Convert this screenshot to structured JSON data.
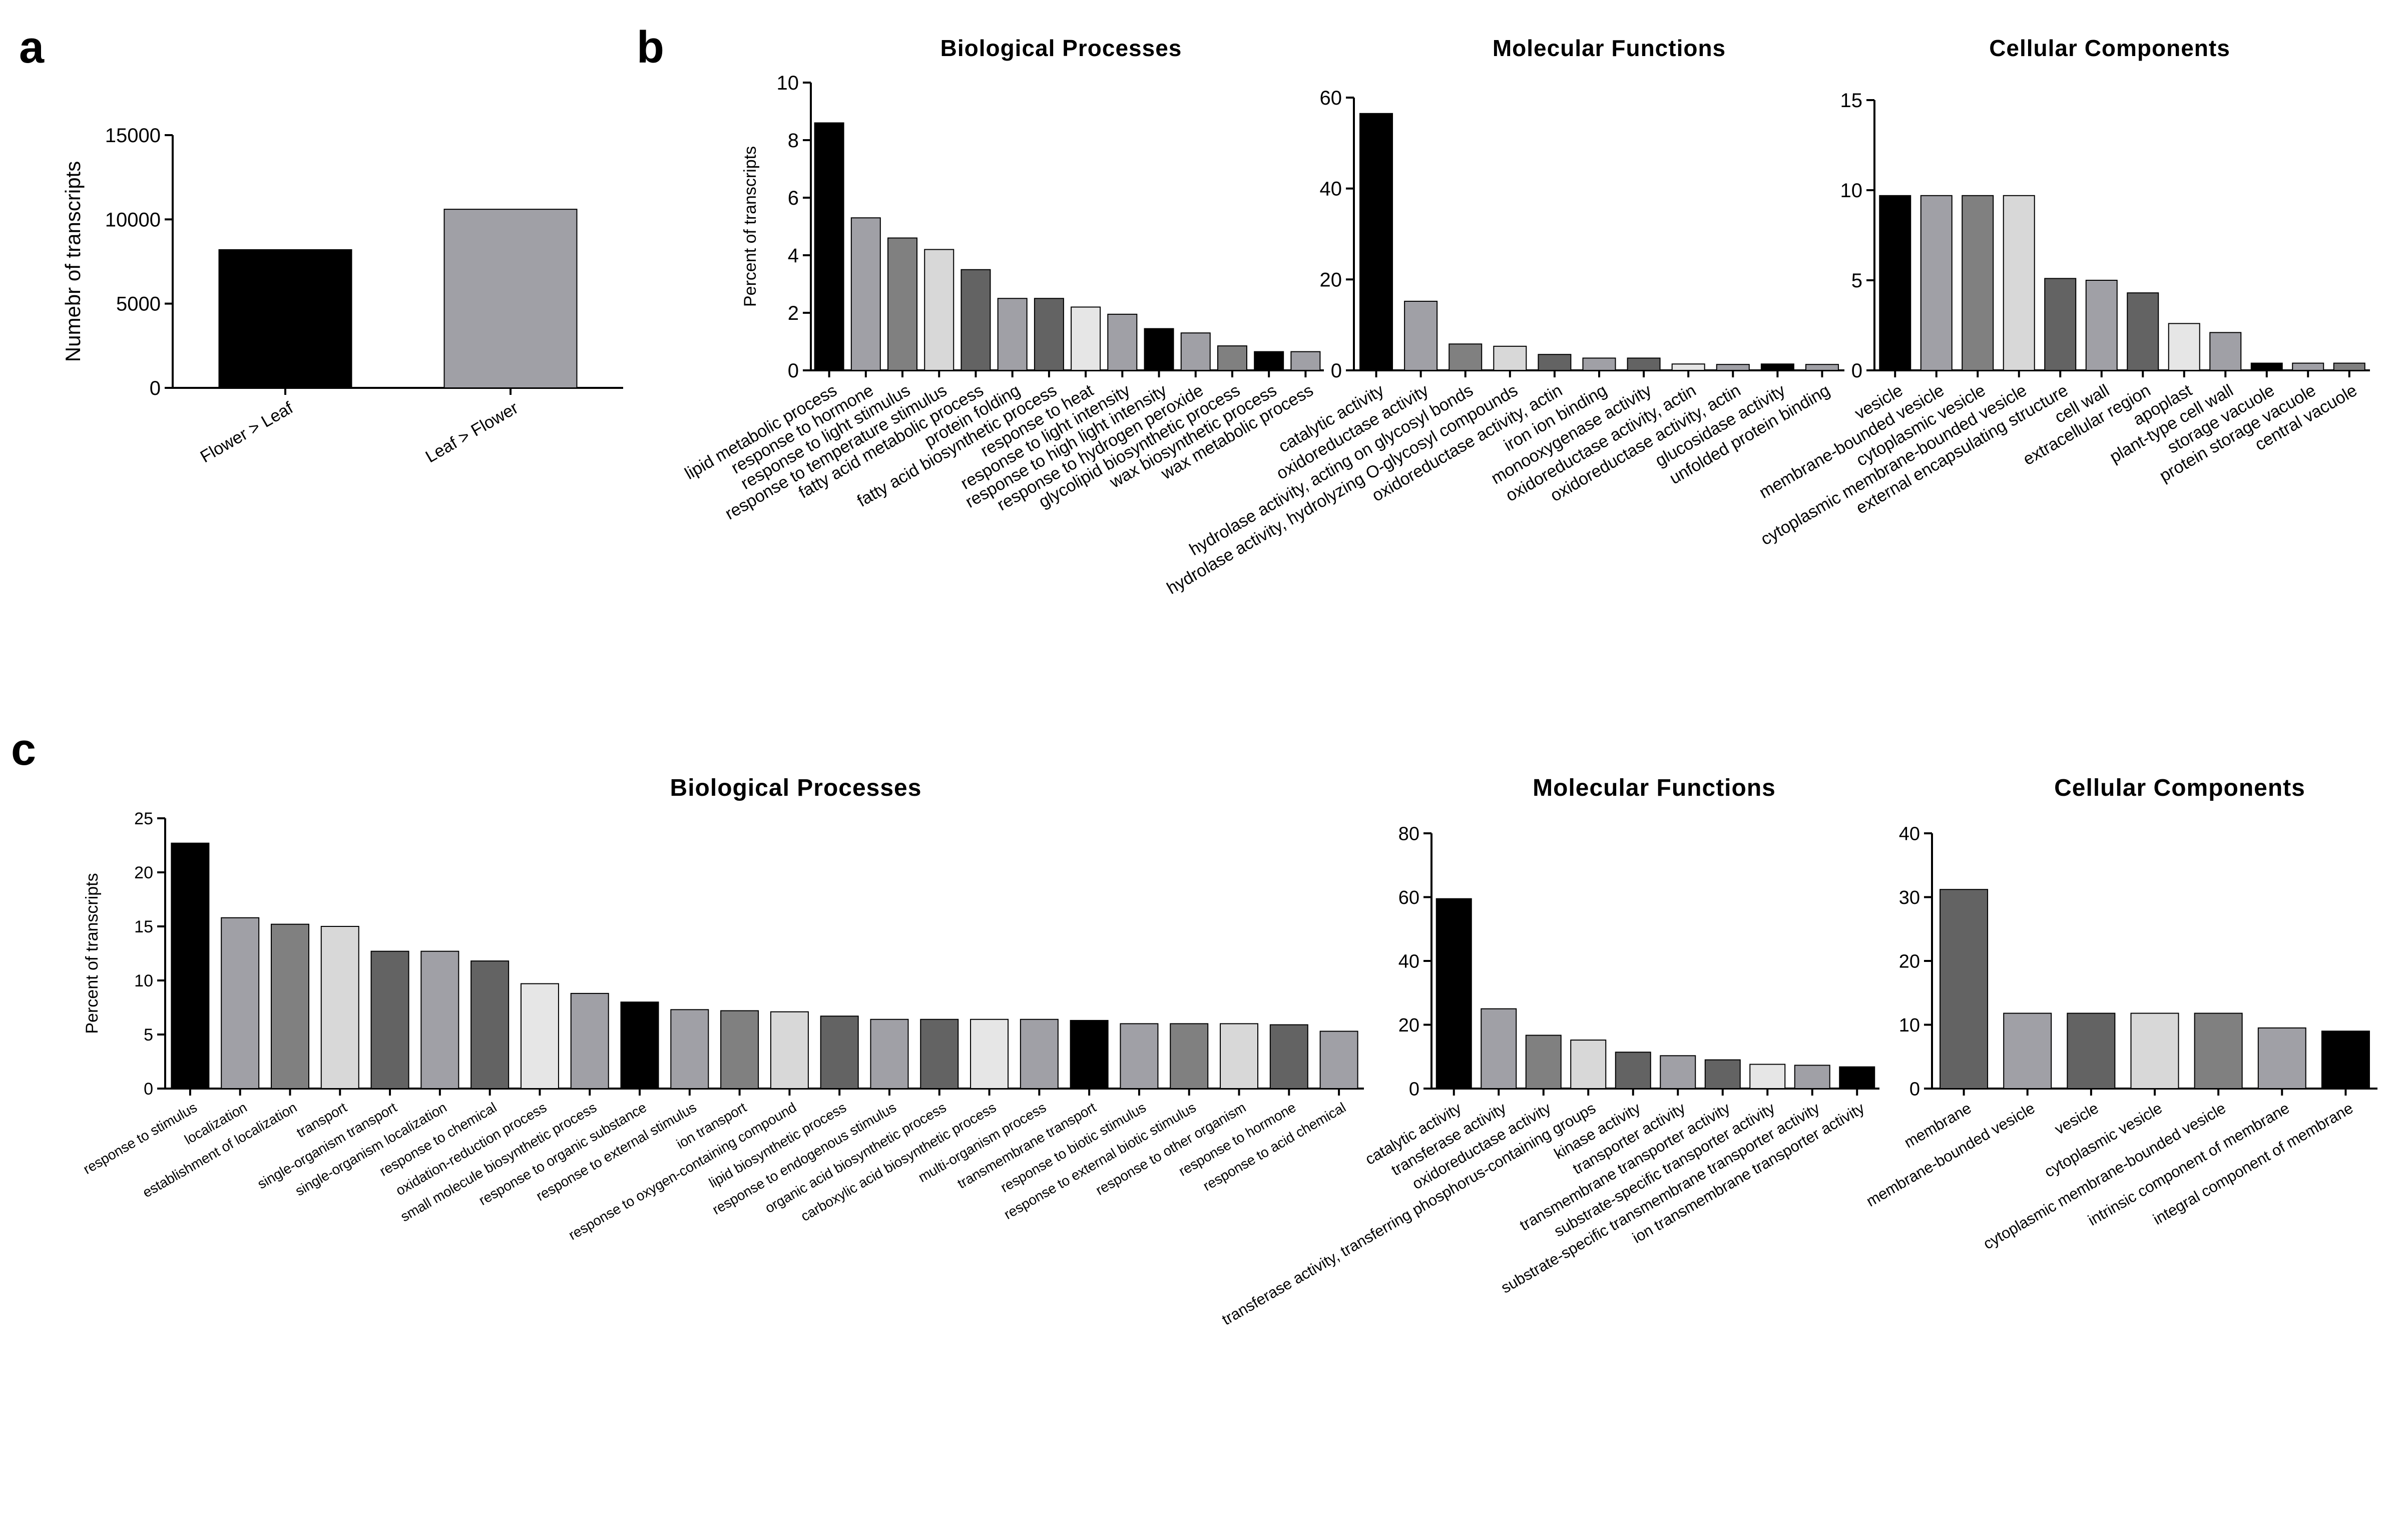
{
  "panel_labels": {
    "a": "a",
    "b": "b",
    "c": "c"
  },
  "chart_data": [
    {
      "id": "a",
      "type": "bar",
      "title": "",
      "ylabel": "Numebr of transcripts",
      "xlabel": "",
      "ylim": [
        0,
        15000
      ],
      "yticks": [
        0,
        5000,
        10000,
        15000
      ],
      "categories": [
        "Flower > Leaf",
        "Leaf > Flower"
      ],
      "values": [
        8200,
        10600
      ],
      "colors": [
        "#000000",
        "#a0a0a6"
      ]
    },
    {
      "id": "b-bp",
      "type": "bar",
      "title": "Biological Processes",
      "ylabel": "Percent of transcripts",
      "xlabel": "",
      "ylim": [
        0,
        10
      ],
      "yticks": [
        0,
        2,
        4,
        6,
        8,
        10
      ],
      "categories": [
        "lipid metabolic process",
        "response to hormone",
        "response to light stimulus",
        "response to temperature stimulus",
        "fatty acid metabolic process",
        "protein folding",
        "fatty acid biosynthetic process",
        "response to heat",
        "response to light intensity",
        "response to high light intensity",
        "response to hydrogen peroxide",
        "glycolipid biosynthetic process",
        "wax biosynthetic process",
        "wax metabolic process"
      ],
      "values": [
        8.6,
        5.3,
        4.6,
        4.2,
        3.5,
        2.5,
        2.5,
        2.2,
        1.95,
        1.45,
        1.3,
        0.85,
        0.65,
        0.65
      ],
      "colors": [
        "#000000",
        "#a0a0a6",
        "#808080",
        "#d8d8d8",
        "#636363",
        "#a0a0a6",
        "#636363",
        "#e6e6e6",
        "#a0a0a6",
        "#000000",
        "#a0a0a6",
        "#808080",
        "#000000",
        "#a0a0a6"
      ]
    },
    {
      "id": "b-mf",
      "type": "bar",
      "title": "Molecular Functions",
      "ylabel": "",
      "xlabel": "",
      "ylim": [
        0,
        60
      ],
      "yticks": [
        0,
        20,
        40,
        60
      ],
      "categories": [
        "catalytic activity",
        "oxidoreductase activity",
        "hydrolase activity, acting on glycosyl bonds",
        "hydrolase activity, hydrolyzing O-glycosyl compounds",
        "oxidoreductase activity, actin",
        "iron ion binding",
        "monooxygenase activity",
        "oxidoreductase activity, actin",
        "oxidoreductase activity, actin",
        "glucosidase activity",
        "unfolded protein binding"
      ],
      "values": [
        56.5,
        15.2,
        5.8,
        5.3,
        3.5,
        2.7,
        2.7,
        1.4,
        1.3,
        1.4,
        1.3
      ],
      "colors": [
        "#000000",
        "#a0a0a6",
        "#808080",
        "#d8d8d8",
        "#636363",
        "#a0a0a6",
        "#636363",
        "#e6e6e6",
        "#a0a0a6",
        "#000000",
        "#a0a0a6"
      ]
    },
    {
      "id": "b-cc",
      "type": "bar",
      "title": "Cellular Components",
      "ylabel": "",
      "xlabel": "",
      "ylim": [
        0,
        15
      ],
      "yticks": [
        0,
        5,
        10,
        15
      ],
      "categories": [
        "vesicle",
        "membrane-bounded vesicle",
        "cytoplasmic vesicle",
        "cytoplasmic membrane-bounded vesicle",
        "external encapsulating structure",
        "cell wall",
        "extracellular region",
        "apoplast",
        "plant-type cell wall",
        "storage vacuole",
        "protein storage vacuole",
        "central vacuole"
      ],
      "values": [
        9.7,
        9.7,
        9.7,
        9.7,
        5.1,
        5.0,
        4.3,
        2.6,
        2.1,
        0.4,
        0.4,
        0.4
      ],
      "colors": [
        "#000000",
        "#a0a0a6",
        "#808080",
        "#d8d8d8",
        "#636363",
        "#a0a0a6",
        "#636363",
        "#e6e6e6",
        "#a0a0a6",
        "#000000",
        "#a0a0a6",
        "#808080"
      ]
    },
    {
      "id": "c-bp",
      "type": "bar",
      "title": "Biological Processes",
      "ylabel": "Percent of transcripts",
      "xlabel": "",
      "ylim": [
        0,
        25
      ],
      "yticks": [
        0,
        5,
        10,
        15,
        20,
        25
      ],
      "categories": [
        "response to stimulus",
        "localization",
        "establishment of localization",
        "transport",
        "single-organism transport",
        "single-organism localization",
        "response to chemical",
        "oxidation-reduction process",
        "small molecule biosynthetic process",
        "response to organic substance",
        "response to external stimulus",
        "ion transport",
        "response to oxygen-containing compound",
        "lipid biosynthetic process",
        "response to endogenous stimulus",
        "organic acid biosynthetic process",
        "carboxylic acid biosynthetic process",
        "multi-organism process",
        "transmembrane transport",
        "response to biotic stimulus",
        "response to external biotic stimulus",
        "response to other organism",
        "response to hormone",
        "response to acid chemical"
      ],
      "values": [
        22.7,
        15.8,
        15.2,
        15.0,
        12.7,
        12.7,
        11.8,
        9.7,
        8.8,
        8.0,
        7.3,
        7.2,
        7.1,
        6.7,
        6.4,
        6.4,
        6.4,
        6.4,
        6.3,
        6.0,
        6.0,
        6.0,
        5.9,
        5.3
      ],
      "colors": [
        "#000000",
        "#a0a0a6",
        "#808080",
        "#d8d8d8",
        "#636363",
        "#a0a0a6",
        "#636363",
        "#e6e6e6",
        "#a0a0a6",
        "#000000",
        "#a0a0a6",
        "#808080",
        "#d8d8d8",
        "#636363",
        "#a0a0a6",
        "#636363",
        "#e6e6e6",
        "#a0a0a6",
        "#000000",
        "#a0a0a6",
        "#808080",
        "#d8d8d8",
        "#636363",
        "#a0a0a6"
      ]
    },
    {
      "id": "c-mf",
      "type": "bar",
      "title": "Molecular Functions",
      "ylabel": "",
      "xlabel": "",
      "ylim": [
        0,
        80
      ],
      "yticks": [
        0,
        20,
        40,
        60,
        80
      ],
      "categories": [
        "catalytic activity",
        "transferase activity",
        "oxidoreductase activity",
        "transferase activity, transferring phosphorus-containing groups",
        "kinase activity",
        "transporter activity",
        "transmembrane transporter activity",
        "substrate-specific transporter activity",
        "substrate-specific transmembrane transporter activity",
        "ion transmembrane transporter activity"
      ],
      "values": [
        59.5,
        25.0,
        16.7,
        15.2,
        11.4,
        10.3,
        9.0,
        7.6,
        7.3,
        6.8
      ],
      "colors": [
        "#000000",
        "#a0a0a6",
        "#808080",
        "#d8d8d8",
        "#636363",
        "#a0a0a6",
        "#636363",
        "#e6e6e6",
        "#a0a0a6",
        "#000000"
      ]
    },
    {
      "id": "c-cc",
      "type": "bar",
      "title": "Cellular Components",
      "ylabel": "",
      "xlabel": "",
      "ylim": [
        0,
        40
      ],
      "yticks": [
        0,
        10,
        20,
        30,
        40
      ],
      "categories": [
        "membrane",
        "membrane-bounded vesicle",
        "vesicle",
        "cytoplasmic vesicle",
        "cytoplasmic membrane-bounded vesicle",
        "intrinsic component of membrane",
        "integral component of membrane"
      ],
      "values": [
        31.2,
        11.8,
        11.8,
        11.8,
        11.8,
        9.5,
        9.0
      ],
      "colors": [
        "#636363",
        "#a0a0a6",
        "#636363",
        "#d8d8d8",
        "#808080",
        "#a0a0a6",
        "#000000"
      ]
    }
  ]
}
